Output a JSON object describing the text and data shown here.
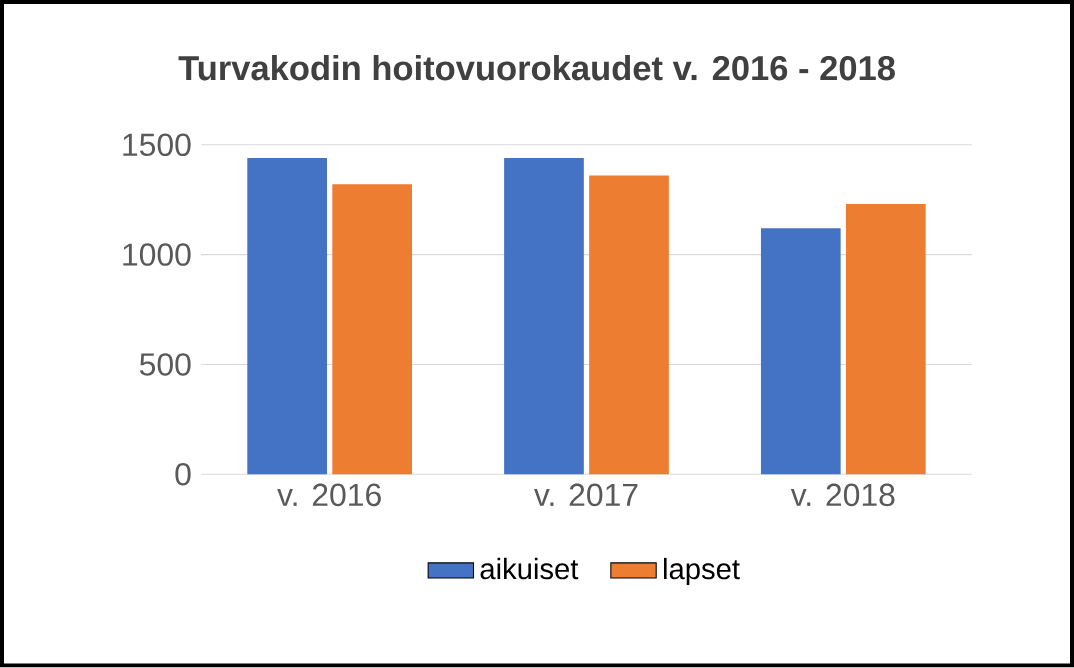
{
  "chart_data": {
    "type": "bar",
    "title": "Turvakodin hoitovuorokaudet v. 2016 - 2018",
    "categories": [
      "v. 2016",
      "v. 2017",
      "v. 2018"
    ],
    "series": [
      {
        "name": "aikuiset",
        "color": "#4472c4",
        "values": [
          1440,
          1440,
          1120
        ]
      },
      {
        "name": "lapset",
        "color": "#ed7d31",
        "values": [
          1320,
          1360,
          1230
        ]
      }
    ],
    "ylim": [
      0,
      1500
    ],
    "yticks": [
      0,
      500,
      1000,
      1500
    ],
    "grid": "y",
    "legend": "bottom"
  }
}
